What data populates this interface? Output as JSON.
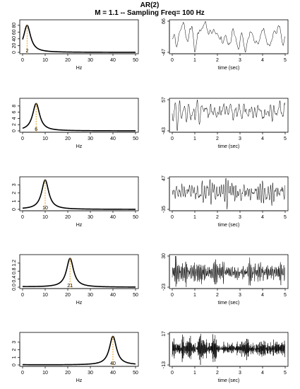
{
  "title": "AR(2)",
  "subtitle": "M = 1.1 -- Sampling Freq=  100  Hz",
  "colors": {
    "curve": "#000000",
    "peak_marker": "#e8a317",
    "frame": "#000000"
  },
  "chart_data": [
    {
      "type": "line",
      "panel": "spectrum",
      "row": 1,
      "xlabel": "Hz",
      "ylabel": "",
      "xlim": [
        0,
        50
      ],
      "ylim": [
        0,
        92
      ],
      "x_ticks": [
        "0",
        "10",
        "20",
        "30",
        "40",
        "50"
      ],
      "y_ticks": [
        "0",
        "20",
        "40",
        "60",
        "80"
      ],
      "peak_freq": 2,
      "peak_label": "2",
      "peak_value": 80,
      "width": 1.9,
      "base": 0.5,
      "grid": false,
      "legend": "none"
    },
    {
      "type": "line",
      "panel": "time_series",
      "row": 1,
      "xlabel": "time (sec)",
      "ylabel": "",
      "xlim": [
        0,
        5
      ],
      "x_ticks": [
        "0",
        "1",
        "2",
        "3",
        "4",
        "5"
      ],
      "y_ticks": [
        "-47",
        "66"
      ],
      "ymin": -47,
      "ymax": 66,
      "peak_freq": 2,
      "seed": 11,
      "grid": false,
      "legend": "none"
    },
    {
      "type": "line",
      "panel": "spectrum",
      "row": 2,
      "xlabel": "Hz",
      "ylabel": "",
      "xlim": [
        0,
        50
      ],
      "ylim": [
        0,
        10
      ],
      "x_ticks": [
        "0",
        "10",
        "20",
        "30",
        "40",
        "50"
      ],
      "y_ticks": [
        "0",
        "2",
        "4",
        "6",
        "8"
      ],
      "peak_freq": 6,
      "peak_label": "6",
      "peak_value": 8.8,
      "width": 1.9,
      "base": 0.05,
      "grid": false,
      "legend": "none"
    },
    {
      "type": "line",
      "panel": "time_series",
      "row": 2,
      "xlabel": "time (sec)",
      "ylabel": "",
      "xlim": [
        0,
        5
      ],
      "x_ticks": [
        "0",
        "1",
        "2",
        "3",
        "4",
        "5"
      ],
      "y_ticks": [
        "-43",
        "57"
      ],
      "ymin": -43,
      "ymax": 57,
      "peak_freq": 6,
      "seed": 23,
      "grid": false,
      "legend": "none"
    },
    {
      "type": "line",
      "panel": "spectrum",
      "row": 3,
      "xlabel": "Hz",
      "ylabel": "",
      "xlim": [
        0,
        50
      ],
      "ylim": [
        0,
        3.8
      ],
      "x_ticks": [
        "0",
        "10",
        "20",
        "30",
        "40",
        "50"
      ],
      "y_ticks": [
        "0",
        "1",
        "2",
        "3"
      ],
      "peak_freq": 10,
      "peak_label": "10",
      "peak_value": 3.6,
      "width": 1.9,
      "base": 0.02,
      "grid": false,
      "legend": "none"
    },
    {
      "type": "line",
      "panel": "time_series",
      "row": 3,
      "xlabel": "time (sec)",
      "ylabel": "",
      "xlim": [
        0,
        5
      ],
      "x_ticks": [
        "0",
        "1",
        "2",
        "3",
        "4",
        "5"
      ],
      "y_ticks": [
        "-35",
        "47"
      ],
      "ymin": -35,
      "ymax": 47,
      "peak_freq": 10,
      "seed": 37,
      "grid": false,
      "legend": "none"
    },
    {
      "type": "line",
      "panel": "spectrum",
      "row": 4,
      "xlabel": "Hz",
      "ylabel": "",
      "xlim": [
        0,
        50
      ],
      "ylim": [
        0,
        1.55
      ],
      "x_ticks": [
        "0",
        "10",
        "20",
        "30",
        "40",
        "50"
      ],
      "y_ticks": [
        "0.0",
        "0.4",
        "0.8",
        "1.2"
      ],
      "peak_freq": 21,
      "peak_label": "21",
      "peak_value": 1.45,
      "width": 1.9,
      "base": 0.02,
      "grid": false,
      "legend": "none"
    },
    {
      "type": "line",
      "panel": "time_series",
      "row": 4,
      "xlabel": "time (sec)",
      "ylabel": "",
      "xlim": [
        0,
        5
      ],
      "x_ticks": [
        "0",
        "1",
        "2",
        "3",
        "4",
        "5"
      ],
      "y_ticks": [
        "-23",
        "30"
      ],
      "ymin": -23,
      "ymax": 30,
      "peak_freq": 21,
      "seed": 53,
      "grid": false,
      "legend": "none"
    },
    {
      "type": "line",
      "panel": "spectrum",
      "row": 5,
      "xlabel": "Hz",
      "ylabel": "",
      "xlim": [
        0,
        50
      ],
      "ylim": [
        0,
        4.1
      ],
      "x_ticks": [
        "0",
        "10",
        "20",
        "30",
        "40",
        "50"
      ],
      "y_ticks": [
        "0",
        "1",
        "2",
        "3"
      ],
      "peak_freq": 40,
      "peak_label": "40",
      "peak_value": 3.8,
      "width": 1.9,
      "base": 0.03,
      "grid": false,
      "legend": "none"
    },
    {
      "type": "line",
      "panel": "time_series",
      "row": 5,
      "xlabel": "time (sec)",
      "ylabel": "",
      "xlim": [
        0,
        5
      ],
      "x_ticks": [
        "0",
        "1",
        "2",
        "3",
        "4",
        "5"
      ],
      "y_ticks": [
        "-13",
        "17"
      ],
      "ymin": -13,
      "ymax": 17,
      "peak_freq": 40,
      "seed": 71,
      "grid": false,
      "legend": "none"
    }
  ]
}
